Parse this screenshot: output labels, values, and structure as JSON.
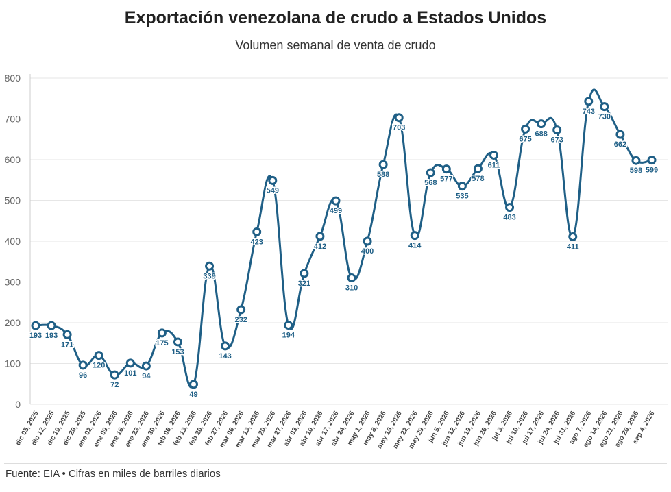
{
  "title": "Exportación venezolana de crudo a Estados Unidos",
  "subtitle": "Volumen semanal de venta de crudo",
  "footer": "Fuente: EIA • Cifras en miles de barriles diarios",
  "colors": {
    "line": "#1f5f86",
    "point_fill": "#ffffff",
    "grid": "#e6e6e6",
    "axis_text": "#666666"
  },
  "chart_data": {
    "type": "line",
    "title": "Exportación venezolana de crudo a Estados Unidos",
    "subtitle": "Volumen semanal de venta de crudo",
    "xlabel": "",
    "ylabel": "",
    "ylim": [
      0,
      800
    ],
    "yticks": [
      0,
      100,
      200,
      300,
      400,
      500,
      600,
      700,
      800
    ],
    "grid": true,
    "legend": "none",
    "categories": [
      "dic 05, 2025",
      "dic 12, 2025",
      "dic 19, 2025",
      "dic 26, 2025",
      "ene 02, 2026",
      "ene 09, 2026",
      "ene 16, 2026",
      "ene 23, 2026",
      "ene 30, 2026",
      "feb 06, 2026",
      "feb 13, 2026",
      "feb 20, 2026",
      "feb 27, 2026",
      "mar 06, 2026",
      "mar 13, 2026",
      "mar 20, 2026",
      "mar 27, 2026",
      "abr 03, 2026",
      "abr 10, 2026",
      "abr 17, 2026",
      "abr 24, 2026",
      "may 1, 2026",
      "may 8, 2026",
      "may 15, 2026",
      "may 22, 2026",
      "may 29, 2026",
      "jun 5, 2026",
      "jun 12, 2026",
      "jun 19, 2026",
      "jun 26, 2026",
      "jul 3, 2026",
      "jul 10, 2026",
      "jul 17, 2026",
      "jul 24, 2026",
      "jul 31, 2026",
      "ago 7, 2026",
      "ago 14, 2026",
      "ago 21, 2026",
      "ago 26, 2026",
      "sep 4, 2026"
    ],
    "series": [
      {
        "values": [
          193,
          193,
          171,
          96,
          120,
          72,
          101,
          94,
          175,
          153,
          49,
          339,
          143,
          232,
          423,
          549,
          194,
          321,
          412,
          499,
          310,
          400,
          588,
          703,
          414,
          568,
          577,
          535,
          578,
          611,
          483,
          675,
          688,
          673,
          411,
          743,
          730,
          662,
          598,
          599
        ]
      }
    ]
  }
}
